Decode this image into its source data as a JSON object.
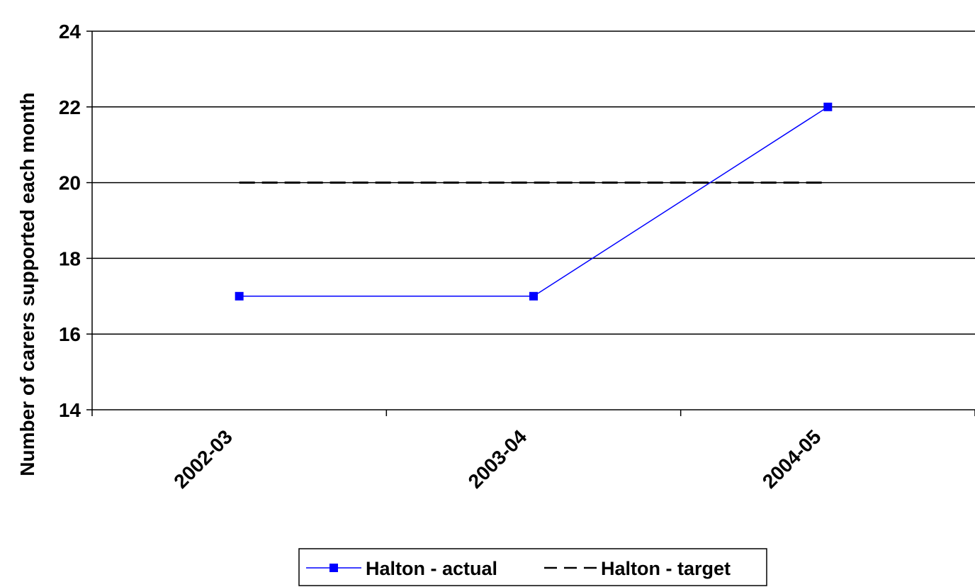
{
  "chart_data": {
    "type": "line",
    "categories": [
      "2002-03",
      "2003-04",
      "2004-05"
    ],
    "series": [
      {
        "name": "Halton - actual",
        "values": [
          17,
          17,
          22
        ],
        "color": "#0000ff",
        "style": "solid",
        "marker": "square"
      },
      {
        "name": "Halton - target",
        "values": [
          20,
          20,
          20
        ],
        "color": "#000000",
        "style": "dashed",
        "marker": "none"
      }
    ],
    "title": "",
    "xlabel": "",
    "ylabel": "Number of carers supported each month",
    "ylim": [
      14,
      24
    ],
    "yticks": [
      14,
      16,
      18,
      20,
      22,
      24
    ],
    "grid": true,
    "legend_position": "bottom-center"
  }
}
